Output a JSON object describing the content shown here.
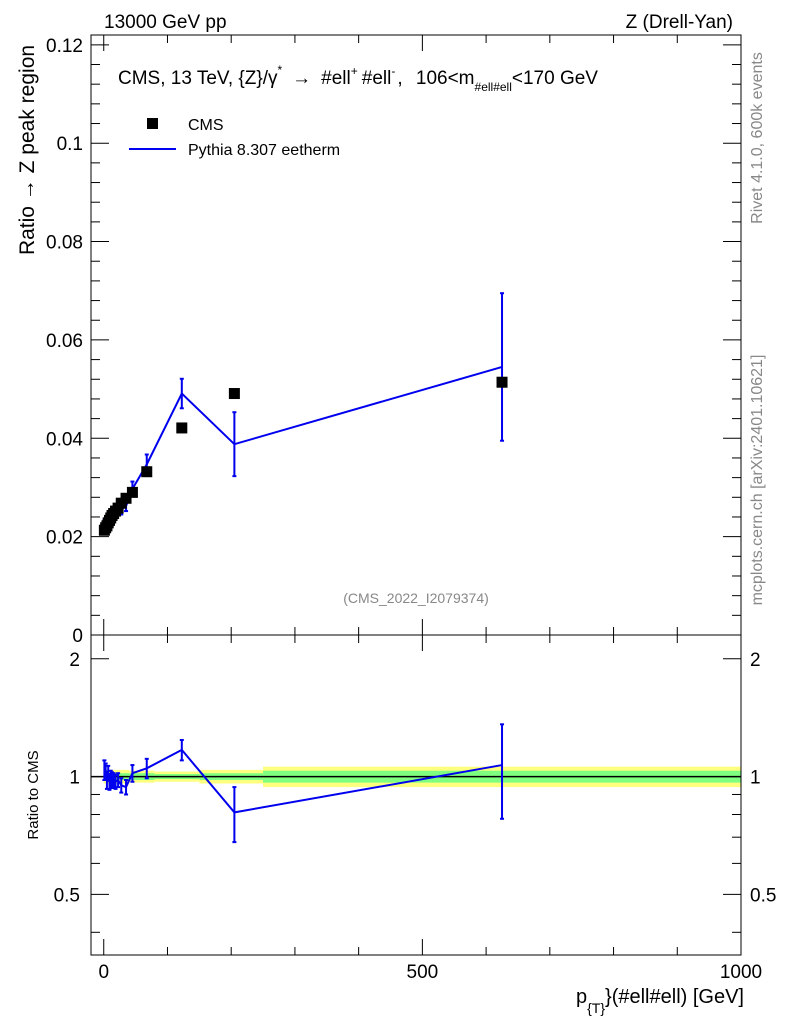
{
  "header": {
    "left": "13000 GeV pp",
    "right": "Z (Drell-Yan)"
  },
  "side": {
    "rivet": "Rivet 4.1.0,  600k events",
    "mcplots": "mcplots.cern.ch [arXiv:2401.10621]"
  },
  "chart_data": {
    "type": "scatter",
    "title_parts": {
      "main": "CMS, 13 TeV, {Z}/γ",
      "star": "*",
      "arrow": "→",
      "ell1": "#ell",
      "plus": "+",
      "ell2": "#ell",
      "minus": "-",
      "cut_prefix": "106<m",
      "cut_sub": "#ell#ell",
      "cut_suffix": "<170 GeV"
    },
    "analysis_id": "(CMS_2022_I2079374)",
    "ylabel": "Ratio → Z peak region",
    "ratio_ylabel": "Ratio to CMS",
    "xlabel_parts": {
      "p": "p",
      "sub": "{T}",
      "rest": "}(#ell#ell) [GeV]"
    },
    "xlim": [
      -20,
      1000
    ],
    "ylim": [
      0,
      0.122
    ],
    "ratio_ylim": [
      0.35,
      2.3
    ],
    "xticks": [
      0,
      500,
      1000
    ],
    "yticks": [
      0,
      0.02,
      0.04,
      0.06,
      0.08,
      0.1,
      0.12
    ],
    "yticklabels": [
      "0",
      "0.02",
      "0.04",
      "0.06",
      "0.08",
      "0.1",
      "0.12"
    ],
    "ratio_yticks": [
      0.5,
      1,
      2
    ],
    "ratio_yticklabels": [
      "0.5",
      "1",
      "2"
    ],
    "legend": [
      {
        "name": "CMS",
        "kind": "marker"
      },
      {
        "name": "Pythia 8.307 eetherm",
        "kind": "line"
      }
    ],
    "colors": {
      "data": "#000000",
      "mc": "#0000ee",
      "band_inner": "#7fff7f",
      "band_outer": "#ffff7f"
    },
    "series": [
      {
        "name": "CMS",
        "x": [
          1,
          3,
          5,
          7,
          9,
          11,
          13,
          15.5,
          18.5,
          22.5,
          27.5,
          35,
          45,
          67.5,
          122.5,
          205,
          625
        ],
        "y": [
          0.0213,
          0.0218,
          0.0222,
          0.0228,
          0.0233,
          0.0238,
          0.0243,
          0.0247,
          0.0252,
          0.0258,
          0.0268,
          0.0278,
          0.029,
          0.0332,
          0.0421,
          0.0491,
          0.0514
        ]
      },
      {
        "name": "Pythia 8.307 eetherm",
        "x": [
          1,
          3,
          5,
          7,
          9,
          11,
          13,
          15.5,
          18.5,
          22.5,
          27.5,
          35,
          45,
          67.5,
          122.5,
          205,
          625
        ],
        "y": [
          0.0221,
          0.0225,
          0.0218,
          0.0232,
          0.0227,
          0.0236,
          0.0238,
          0.0241,
          0.0244,
          0.0253,
          0.0255,
          0.0262,
          0.0297,
          0.0347,
          0.0491,
          0.0388,
          0.0545
        ],
        "yerr": [
          0.0012,
          0.001,
          0.001,
          0.001,
          0.001,
          0.001,
          0.001,
          0.001,
          0.001,
          0.001,
          0.001,
          0.001,
          0.0015,
          0.002,
          0.003,
          0.0065,
          0.015
        ],
        "ratio": [
          1.04,
          1.03,
          0.98,
          1.02,
          0.97,
          0.99,
          0.98,
          0.98,
          0.97,
          0.98,
          0.95,
          0.94,
          1.02,
          1.05,
          1.17,
          0.81,
          1.07
        ],
        "ratio_err": [
          0.06,
          0.05,
          0.05,
          0.045,
          0.045,
          0.045,
          0.045,
          0.04,
          0.04,
          0.04,
          0.04,
          0.04,
          0.05,
          0.06,
          0.07,
          0.13,
          0.29
        ]
      }
    ],
    "ratio_band": {
      "edges": [
        0,
        10,
        40,
        80,
        150,
        250,
        1000
      ],
      "inner": [
        0.02,
        0.02,
        0.02,
        0.015,
        0.02,
        0.035
      ],
      "outer": [
        0.04,
        0.04,
        0.035,
        0.03,
        0.04,
        0.06
      ]
    }
  }
}
